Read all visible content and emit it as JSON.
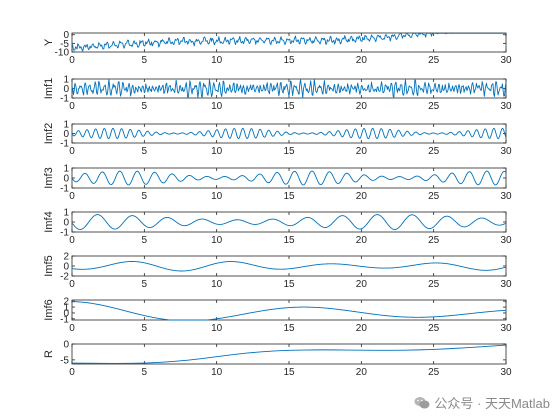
{
  "chart_data": [
    {
      "type": "line",
      "ylabel": "Y",
      "xlim": [
        0,
        30
      ],
      "ylim": [
        -10,
        1
      ],
      "yticks": [
        0,
        -5,
        -10
      ],
      "ytick_labels": [
        "0",
        "-5",
        "-10"
      ],
      "xticks": [
        0,
        5,
        10,
        15,
        20,
        25,
        30
      ],
      "xtick_labels": [
        "0",
        "5",
        "10",
        "15",
        "20",
        "25",
        "30"
      ],
      "color": "#0072BD",
      "series": [
        {
          "values": []
        }
      ]
    },
    {
      "type": "line",
      "ylabel": "Imf1",
      "xlim": [
        0,
        30
      ],
      "ylim": [
        -1,
        1
      ],
      "yticks": [
        1,
        0,
        -1
      ],
      "ytick_labels": [
        "1",
        "0",
        "-1"
      ],
      "xticks": [
        0,
        5,
        10,
        15,
        20,
        25,
        30
      ],
      "xtick_labels": [
        "0",
        "5",
        "10",
        "15",
        "20",
        "25",
        "30"
      ],
      "color": "#0072BD",
      "series": [
        {
          "values": []
        }
      ]
    },
    {
      "type": "line",
      "ylabel": "Imf2",
      "xlim": [
        0,
        30
      ],
      "ylim": [
        -1,
        1
      ],
      "yticks": [
        1,
        0,
        -1
      ],
      "ytick_labels": [
        "1",
        "0",
        "-1"
      ],
      "xticks": [
        0,
        5,
        10,
        15,
        20,
        25,
        30
      ],
      "xtick_labels": [
        "0",
        "5",
        "10",
        "15",
        "20",
        "25",
        "30"
      ],
      "color": "#0072BD",
      "series": [
        {
          "values": []
        }
      ]
    },
    {
      "type": "line",
      "ylabel": "Imf3",
      "xlim": [
        0,
        30
      ],
      "ylim": [
        -1,
        1
      ],
      "yticks": [
        1,
        0,
        -1
      ],
      "ytick_labels": [
        "1",
        "0",
        "-1"
      ],
      "xticks": [
        0,
        5,
        10,
        15,
        20,
        25,
        30
      ],
      "xtick_labels": [
        "0",
        "5",
        "10",
        "15",
        "20",
        "25",
        "30"
      ],
      "color": "#0072BD",
      "series": [
        {
          "values": []
        }
      ]
    },
    {
      "type": "line",
      "ylabel": "Imf4",
      "xlim": [
        0,
        30
      ],
      "ylim": [
        -1,
        1
      ],
      "yticks": [
        1,
        0,
        -1
      ],
      "ytick_labels": [
        "1",
        "0",
        "-1"
      ],
      "xticks": [
        0,
        5,
        10,
        15,
        20,
        25,
        30
      ],
      "xtick_labels": [
        "0",
        "5",
        "10",
        "15",
        "20",
        "25",
        "30"
      ],
      "color": "#0072BD",
      "series": [
        {
          "values": []
        }
      ]
    },
    {
      "type": "line",
      "ylabel": "Imf5",
      "xlim": [
        0,
        30
      ],
      "ylim": [
        -2,
        2
      ],
      "yticks": [
        2,
        0,
        -2
      ],
      "ytick_labels": [
        "2",
        "0",
        "-2"
      ],
      "xticks": [
        0,
        5,
        10,
        15,
        20,
        25,
        30
      ],
      "xtick_labels": [
        "0",
        "5",
        "10",
        "15",
        "20",
        "25",
        "30"
      ],
      "color": "#0072BD",
      "series": [
        {
          "values": []
        }
      ]
    },
    {
      "type": "line",
      "ylabel": "Imf6",
      "xlim": [
        0,
        30
      ],
      "ylim": [
        -1.2,
        2.2
      ],
      "yticks": [
        2,
        1,
        0,
        -1
      ],
      "ytick_labels": [
        "2",
        "1",
        "0",
        "-1"
      ],
      "xticks": [
        0,
        5,
        10,
        15,
        20,
        25,
        30
      ],
      "xtick_labels": [
        "0",
        "5",
        "10",
        "15",
        "20",
        "25",
        "30"
      ],
      "color": "#0072BD",
      "series": [
        {
          "values": []
        }
      ]
    },
    {
      "type": "line",
      "ylabel": "R",
      "xlim": [
        0,
        30
      ],
      "ylim": [
        -6.3,
        0
      ],
      "yticks": [
        0,
        -5
      ],
      "ytick_labels": [
        "0",
        "-5"
      ],
      "xticks": [
        0,
        5,
        10,
        15,
        20,
        25,
        30
      ],
      "xtick_labels": [
        "0",
        "5",
        "10",
        "15",
        "20",
        "25",
        "30"
      ],
      "color": "#0072BD",
      "series": [
        {
          "x": [
            0,
            1,
            2,
            3,
            4,
            5,
            6,
            7,
            8,
            9,
            10,
            11,
            12,
            13,
            14,
            15,
            16,
            17,
            18,
            19,
            20,
            21,
            22,
            23,
            24,
            25,
            26,
            27,
            28,
            29,
            30
          ],
          "values": [
            -6.0,
            -6.05,
            -6.1,
            -6.12,
            -6.1,
            -6.0,
            -5.8,
            -5.5,
            -5.1,
            -4.6,
            -4.0,
            -3.4,
            -2.9,
            -2.5,
            -2.2,
            -2.0,
            -1.9,
            -1.85,
            -1.85,
            -1.9,
            -1.95,
            -2.0,
            -2.0,
            -1.95,
            -1.85,
            -1.7,
            -1.5,
            -1.25,
            -0.95,
            -0.65,
            -0.35
          ]
        }
      ]
    }
  ],
  "watermark": {
    "icon": "wechat-icon",
    "text": "公众号 · 天天Matlab"
  }
}
